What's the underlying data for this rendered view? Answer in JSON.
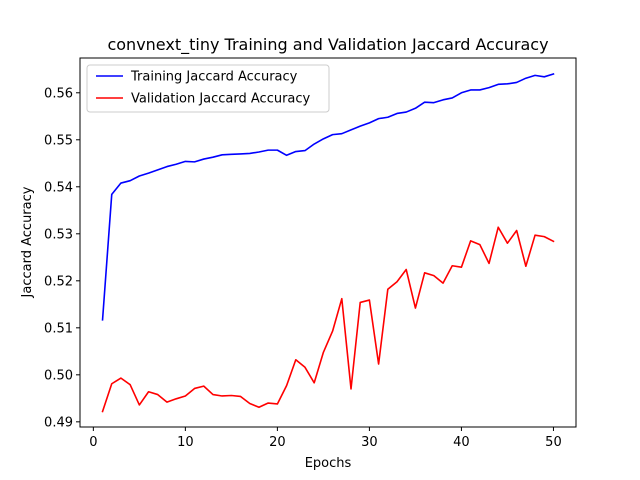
{
  "chart_data": {
    "type": "line",
    "title": "convnext_tiny Training and Validation Jaccard Accuracy",
    "xlabel": "Epochs",
    "ylabel": "Jaccard Accuracy",
    "xlim": [
      -1.45,
      52.45
    ],
    "ylim": [
      0.4889,
      0.5674
    ],
    "xticks": [
      0,
      10,
      20,
      30,
      40,
      50
    ],
    "xtick_labels": [
      "0",
      "10",
      "20",
      "30",
      "40",
      "50"
    ],
    "yticks": [
      0.49,
      0.5,
      0.51,
      0.52,
      0.53,
      0.54,
      0.55,
      0.56
    ],
    "ytick_labels": [
      "0.49",
      "0.50",
      "0.51",
      "0.52",
      "0.53",
      "0.54",
      "0.55",
      "0.56"
    ],
    "grid": false,
    "legend_position": "upper-left",
    "x": [
      1,
      2,
      3,
      4,
      5,
      6,
      7,
      8,
      9,
      10,
      11,
      12,
      13,
      14,
      15,
      16,
      17,
      18,
      19,
      20,
      21,
      22,
      23,
      24,
      25,
      26,
      27,
      28,
      29,
      30,
      31,
      32,
      33,
      34,
      35,
      36,
      37,
      38,
      39,
      40,
      41,
      42,
      43,
      44,
      45,
      46,
      47,
      48,
      49,
      50
    ],
    "series": [
      {
        "name": "Training Jaccard Accuracy",
        "color": "#0000ff",
        "values": [
          0.5117,
          0.5384,
          0.5408,
          0.5413,
          0.5423,
          0.5429,
          0.5436,
          0.5443,
          0.5448,
          0.5454,
          0.5453,
          0.5459,
          0.5463,
          0.5468,
          0.5469,
          0.547,
          0.5471,
          0.5474,
          0.5478,
          0.5478,
          0.5467,
          0.5475,
          0.5477,
          0.5491,
          0.5502,
          0.5511,
          0.5513,
          0.5521,
          0.5529,
          0.5536,
          0.5545,
          0.5548,
          0.5556,
          0.5559,
          0.5567,
          0.558,
          0.5579,
          0.5585,
          0.5589,
          0.56,
          0.5606,
          0.5606,
          0.5611,
          0.5618,
          0.5619,
          0.5622,
          0.5631,
          0.5637,
          0.5634,
          0.564
        ]
      },
      {
        "name": "Validation Jaccard Accuracy",
        "color": "#ff0000",
        "values": [
          0.4922,
          0.4981,
          0.4993,
          0.4979,
          0.4936,
          0.4964,
          0.4958,
          0.4942,
          0.4949,
          0.4955,
          0.4971,
          0.4976,
          0.4958,
          0.4955,
          0.4956,
          0.4954,
          0.4939,
          0.4931,
          0.494,
          0.4938,
          0.4977,
          0.5032,
          0.5016,
          0.4983,
          0.5048,
          0.5093,
          0.5162,
          0.497,
          0.5154,
          0.5159,
          0.5023,
          0.5182,
          0.5198,
          0.5224,
          0.5142,
          0.5217,
          0.5211,
          0.5195,
          0.5232,
          0.5229,
          0.5285,
          0.5277,
          0.5237,
          0.5314,
          0.528,
          0.5307,
          0.5231,
          0.5297,
          0.5294,
          0.5284
        ]
      }
    ]
  }
}
